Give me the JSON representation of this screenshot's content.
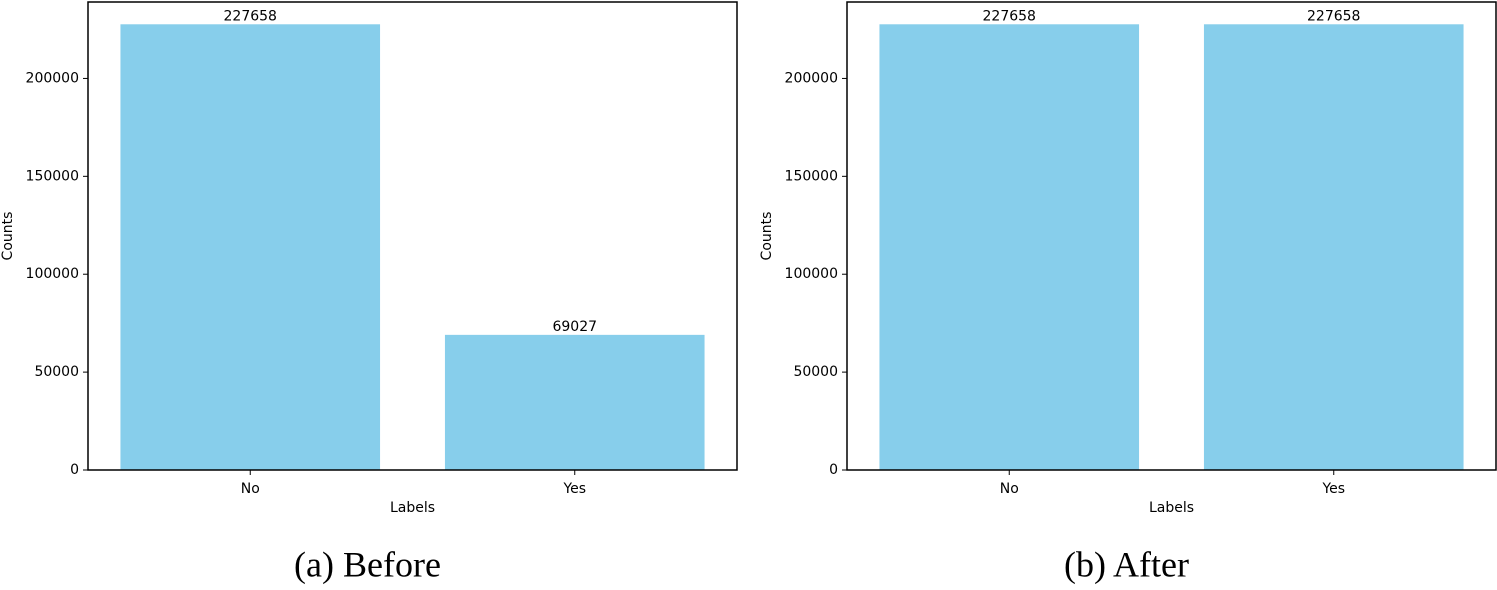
{
  "chart_data": [
    {
      "type": "bar",
      "caption": "(a) Before",
      "xlabel": "Labels",
      "ylabel": "Counts",
      "categories": [
        "No",
        "Yes"
      ],
      "values": [
        227658,
        69027
      ],
      "color": "#87ceeb",
      "ylim": [
        0,
        239041
      ],
      "yticks": [
        0,
        50000,
        100000,
        150000,
        200000
      ]
    },
    {
      "type": "bar",
      "caption": "(b) After",
      "xlabel": "Labels",
      "ylabel": "Counts",
      "categories": [
        "No",
        "Yes"
      ],
      "values": [
        227658,
        227658
      ],
      "color": "#87ceeb",
      "ylim": [
        0,
        239041
      ],
      "yticks": [
        0,
        50000,
        100000,
        150000,
        200000
      ]
    }
  ]
}
